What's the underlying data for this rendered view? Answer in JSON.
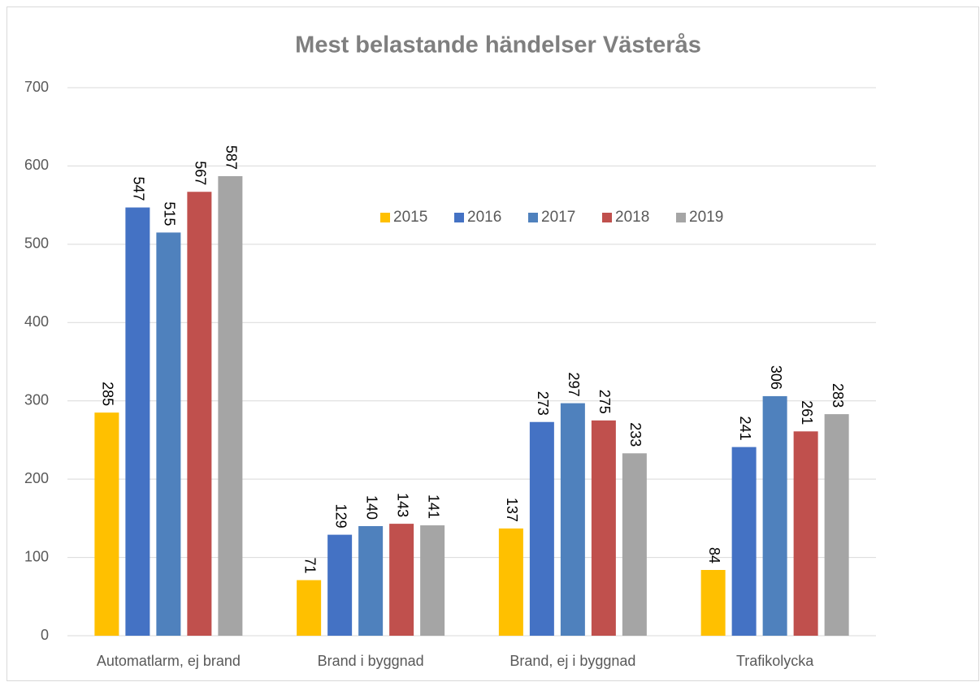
{
  "chart_data": {
    "type": "bar",
    "title": "Mest belastande händelser Västerås",
    "categories": [
      "Automatlarm, ej brand",
      "Brand i byggnad",
      "Brand, ej i byggnad",
      "Trafikolycka"
    ],
    "series": [
      {
        "name": "2015",
        "color": "#ffc000",
        "values": [
          285,
          71,
          137,
          84
        ]
      },
      {
        "name": "2016",
        "color": "#4472c4",
        "values": [
          547,
          129,
          273,
          241
        ]
      },
      {
        "name": "2017",
        "color": "#4f81bd",
        "values": [
          515,
          140,
          297,
          306
        ]
      },
      {
        "name": "2018",
        "color": "#c0504d",
        "values": [
          567,
          143,
          275,
          261
        ]
      },
      {
        "name": "2019",
        "color": "#a5a5a5",
        "values": [
          587,
          141,
          233,
          283
        ]
      }
    ],
    "ylim": [
      0,
      700
    ],
    "yticks": [
      0,
      100,
      200,
      300,
      400,
      500,
      600,
      700
    ],
    "grid": true,
    "legend": "top"
  }
}
